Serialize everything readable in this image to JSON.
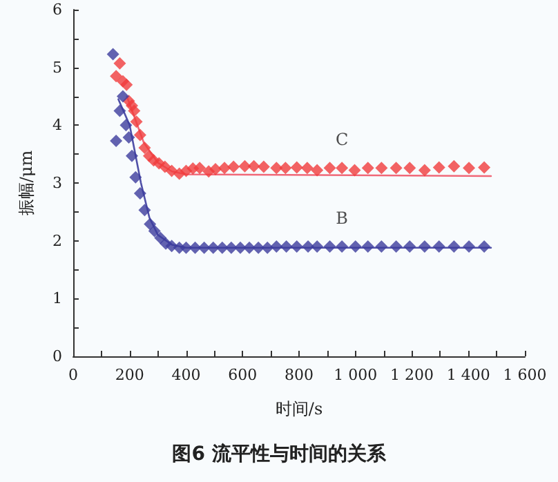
{
  "chart_data": {
    "type": "scatter",
    "title": "图6 流平性与时间的关系",
    "xlabel": "时间/s",
    "ylabel": "振幅/μm",
    "xlim": [
      0,
      1600
    ],
    "ylim": [
      0,
      6
    ],
    "xticks": [
      0,
      {
        "value": 100,
        "label": null
      },
      200,
      {
        "value": 300,
        "label": null
      },
      400,
      {
        "value": 500,
        "label": null
      },
      600,
      {
        "value": 700,
        "label": null
      },
      800,
      {
        "value": 900,
        "label": null
      },
      {
        "value": 1000,
        "label": "1 000"
      },
      {
        "value": 1100,
        "label": null
      },
      {
        "value": 1200,
        "label": "1 200"
      },
      {
        "value": 1300,
        "label": null
      },
      {
        "value": 1400,
        "label": "1 400"
      },
      {
        "value": 1500,
        "label": null
      },
      {
        "value": 1600,
        "label": "1 600"
      }
    ],
    "yticks": [
      0,
      {
        "value": 0.5,
        "label": null
      },
      1,
      {
        "value": 1.5,
        "label": null
      },
      2,
      {
        "value": 2.5,
        "label": null
      },
      3,
      {
        "value": 3.5,
        "label": null
      },
      4,
      {
        "value": 4.5,
        "label": null
      },
      5,
      {
        "value": 5.5,
        "label": null
      },
      6
    ],
    "grid": false,
    "legend": false,
    "marker": "diamond",
    "series": [
      {
        "name": "C",
        "color": "#f03c3c",
        "x": [
          152,
          165,
          176,
          189,
          197,
          208,
          216,
          224,
          237,
          253,
          269,
          285,
          304,
          325,
          349,
          376,
          400,
          424,
          448,
          480,
          504,
          536,
          568,
          608,
          640,
          675,
          720,
          752,
          792,
          829,
          864,
          909,
          952,
          997,
          1044,
          1092,
          1144,
          1192,
          1245,
          1296,
          1349,
          1402,
          1456
        ],
        "values": [
          4.85,
          5.07,
          4.76,
          4.7,
          4.42,
          4.34,
          4.25,
          4.06,
          3.83,
          3.61,
          3.47,
          3.39,
          3.34,
          3.28,
          3.21,
          3.16,
          3.21,
          3.25,
          3.26,
          3.2,
          3.24,
          3.26,
          3.28,
          3.29,
          3.29,
          3.28,
          3.26,
          3.26,
          3.27,
          3.26,
          3.22,
          3.26,
          3.26,
          3.22,
          3.26,
          3.26,
          3.26,
          3.26,
          3.22,
          3.27,
          3.29,
          3.26,
          3.27
        ]
      },
      {
        "name": "B",
        "color": "#3c3c9c",
        "x": [
          141,
          152,
          165,
          176,
          187,
          197,
          208,
          221,
          237,
          253,
          272,
          288,
          309,
          328,
          349,
          376,
          400,
          432,
          464,
          496,
          528,
          560,
          592,
          624,
          656,
          688,
          720,
          755,
          792,
          832,
          864,
          909,
          952,
          1000,
          1044,
          1092,
          1144,
          1192,
          1245,
          1296,
          1349,
          1402,
          1456
        ],
        "values": [
          5.23,
          3.73,
          4.25,
          4.5,
          4.0,
          3.79,
          3.47,
          3.1,
          2.82,
          2.53,
          2.29,
          2.17,
          2.05,
          1.95,
          1.91,
          1.88,
          1.88,
          1.88,
          1.88,
          1.88,
          1.88,
          1.88,
          1.88,
          1.88,
          1.88,
          1.88,
          1.9,
          1.9,
          1.9,
          1.9,
          1.9,
          1.9,
          1.9,
          1.9,
          1.9,
          1.9,
          1.9,
          1.9,
          1.9,
          1.9,
          1.9,
          1.9,
          1.9
        ]
      },
      {
        "type": "line",
        "marker": "none",
        "line_style": "solid",
        "color": "#f06878",
        "x": [
          190,
          220,
          250,
          300,
          350,
          400,
          1480
        ],
        "values": [
          4.5,
          4.1,
          3.7,
          3.35,
          3.2,
          3.15,
          3.12
        ]
      },
      {
        "type": "line",
        "marker": "none",
        "line_style": "solid",
        "color": "#5050a8",
        "x": [
          160,
          200,
          240,
          270,
          300,
          350,
          400,
          1480
        ],
        "values": [
          4.45,
          4.0,
          3.0,
          2.4,
          2.1,
          1.93,
          1.88,
          1.88
        ]
      }
    ]
  }
}
